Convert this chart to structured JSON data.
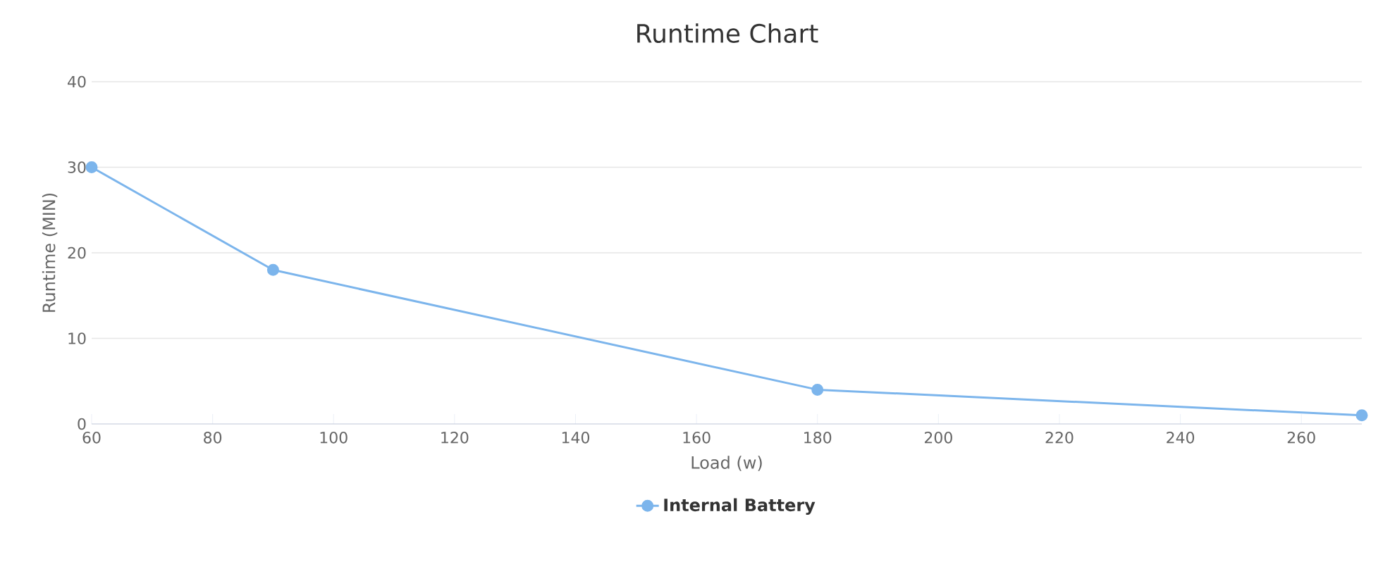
{
  "chart_data": {
    "type": "line",
    "title": "Runtime Chart",
    "xlabel": "Load (w)",
    "ylabel": "Runtime (MIN)",
    "x": [
      60,
      90,
      180,
      270
    ],
    "series": [
      {
        "name": "Internal Battery",
        "color": "#7cb5ec",
        "values": [
          30,
          18,
          4,
          1
        ]
      }
    ],
    "xlim": [
      60,
      270
    ],
    "xticks": [
      60,
      80,
      100,
      120,
      140,
      160,
      180,
      200,
      220,
      240,
      260
    ],
    "ylim": [
      0,
      40
    ],
    "yticks": [
      0,
      10,
      20,
      30,
      40
    ],
    "grid": "y",
    "legend": "bottom",
    "marker": "circle",
    "line_style": "solid"
  }
}
